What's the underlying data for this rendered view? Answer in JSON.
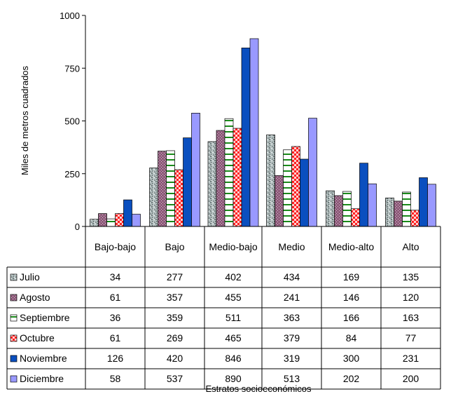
{
  "chart_data": {
    "type": "bar",
    "ylabel": "Miles de metros cuadrados",
    "xlabel": "Estratos socioeconómicos",
    "ylim": [
      0,
      1000
    ],
    "yticks": [
      "0",
      "250",
      "500",
      "750",
      "1000"
    ],
    "categories": [
      "Bajo-bajo",
      "Bajo",
      "Medio-bajo",
      "Medio",
      "Medio-alto",
      "Alto"
    ],
    "series": [
      {
        "name": "Julio",
        "values": [
          34,
          277,
          402,
          434,
          169,
          135
        ],
        "color": "#9aa8a8",
        "pattern": "granite"
      },
      {
        "name": "Agosto",
        "values": [
          61,
          357,
          455,
          241,
          146,
          120
        ],
        "color": "#8e5a7a",
        "pattern": "dots"
      },
      {
        "name": "Septiembre",
        "values": [
          36,
          359,
          511,
          363,
          166,
          163
        ],
        "color": "#1a8a1a",
        "pattern": "ladder"
      },
      {
        "name": "Octubre",
        "values": [
          61,
          269,
          465,
          379,
          84,
          77
        ],
        "color": "#ff2020",
        "pattern": "checker"
      },
      {
        "name": "Noviembre",
        "values": [
          126,
          420,
          846,
          319,
          300,
          231
        ],
        "color": "#0a4fbf",
        "pattern": "solid"
      },
      {
        "name": "Diciembre",
        "values": [
          58,
          537,
          890,
          513,
          202,
          200
        ],
        "color": "#9999ff",
        "pattern": "solid"
      }
    ],
    "gridlines": false,
    "legend": "data-table-left"
  }
}
